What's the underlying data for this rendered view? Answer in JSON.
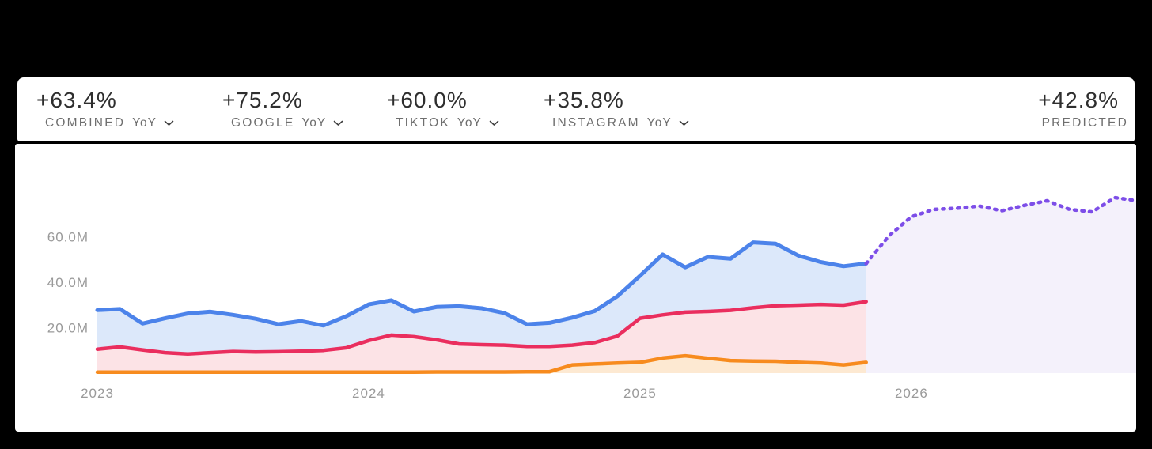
{
  "page": {
    "background": "#000000",
    "panel_background": "#ffffff"
  },
  "stats_bar": {
    "stats": [
      {
        "value": "+63.4%",
        "label": "COMBINED",
        "sub": "YoY"
      },
      {
        "value": "+75.2%",
        "label": "GOOGLE",
        "sub": "YoY"
      },
      {
        "value": "+60.0%",
        "label": "TIKTOK",
        "sub": "YoY"
      },
      {
        "value": "+35.8%",
        "label": "INSTAGRAM",
        "sub": "YoY"
      },
      {
        "value": "+42.8%",
        "label": "PREDICTED",
        "sub": ""
      }
    ]
  },
  "chart_data": {
    "type": "area",
    "title": "",
    "grid": false,
    "legend": false,
    "x_axis": {
      "tick_labels": [
        "2023",
        "2024",
        "2025",
        "2026"
      ],
      "unit": "year",
      "months_per_point": 1
    },
    "y_axis": {
      "tick_labels": [
        "60.0M",
        "40.0M",
        "20.0M"
      ],
      "tick_values": [
        60,
        40,
        20
      ],
      "unit": "M",
      "range": [
        0,
        80
      ]
    },
    "axis_text_color": "#9a9a9a",
    "series": [
      {
        "name": "series-blue",
        "style": "solid",
        "color": "#4c83ea",
        "fill": "#dce8fa",
        "start_month": "2023-01",
        "values": [
          27.9,
          28.4,
          22.0,
          24.3,
          26.4,
          27.2,
          25.8,
          24.1,
          21.7,
          23.1,
          21.1,
          25.2,
          30.4,
          32.2,
          27.3,
          29.3,
          29.6,
          28.7,
          26.6,
          21.7,
          22.3,
          24.6,
          27.5,
          34.0,
          43.0,
          52.4,
          46.7,
          51.3,
          50.5,
          57.7,
          57.1,
          51.9,
          49.0,
          47.2,
          48.4
        ]
      },
      {
        "name": "series-red",
        "style": "solid",
        "color": "#ea2e5e",
        "fill": "#fce3e6",
        "start_month": "2023-01",
        "values": [
          10.7,
          11.7,
          10.4,
          9.2,
          8.6,
          9.2,
          9.7,
          9.5,
          9.6,
          9.8,
          10.2,
          11.3,
          14.5,
          16.9,
          16.2,
          14.8,
          13.0,
          12.7,
          12.5,
          11.9,
          11.9,
          12.5,
          13.6,
          16.5,
          24.3,
          25.8,
          27.0,
          27.3,
          27.8,
          28.9,
          29.8,
          30.1,
          30.4,
          30.1,
          31.6
        ]
      },
      {
        "name": "series-orange",
        "style": "solid",
        "color": "#f78b1e",
        "fill": "#fde9d2",
        "start_month": "2023-01",
        "values": [
          0.6,
          0.6,
          0.6,
          0.6,
          0.6,
          0.6,
          0.6,
          0.6,
          0.6,
          0.6,
          0.6,
          0.6,
          0.6,
          0.6,
          0.6,
          0.7,
          0.7,
          0.7,
          0.7,
          0.8,
          0.8,
          3.8,
          4.2,
          4.6,
          4.9,
          6.8,
          7.8,
          6.7,
          5.7,
          5.5,
          5.4,
          4.9,
          4.6,
          3.8,
          4.9
        ]
      },
      {
        "name": "series-predicted",
        "style": "dotted",
        "color": "#7d4ee8",
        "fill": "#f4f1fb",
        "start_month": "2025-11",
        "values": [
          48.4,
          60.5,
          69.0,
          72.2,
          72.7,
          73.7,
          71.6,
          74.0,
          76.0,
          72.2,
          71.1,
          77.4,
          76.0
        ]
      }
    ]
  }
}
